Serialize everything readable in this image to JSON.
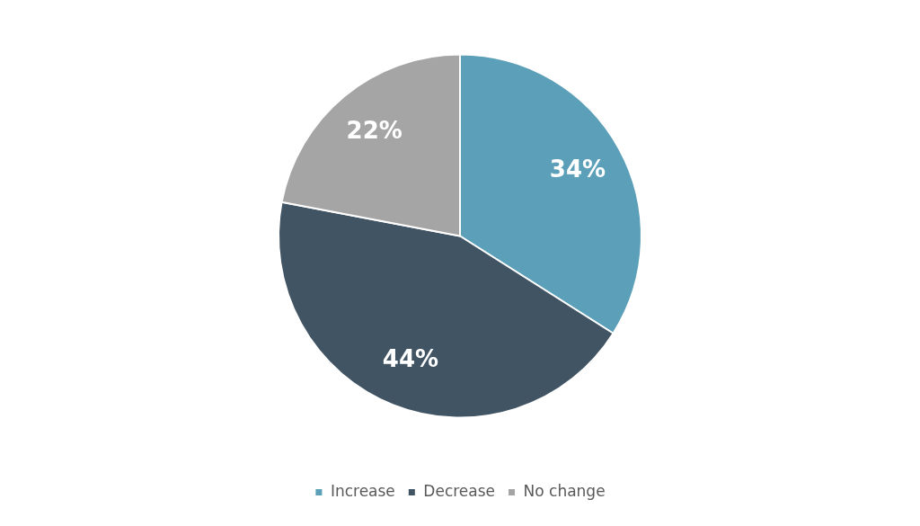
{
  "chart_data": {
    "type": "pie",
    "categories": [
      "Increase",
      "Decrease",
      "No change"
    ],
    "values": [
      34,
      44,
      22
    ],
    "value_labels": [
      "34%",
      "44%",
      "22%"
    ],
    "colors": [
      "#5b9fb8",
      "#415464",
      "#a5a5a5"
    ],
    "data_labels": true,
    "legend": "bottom"
  }
}
